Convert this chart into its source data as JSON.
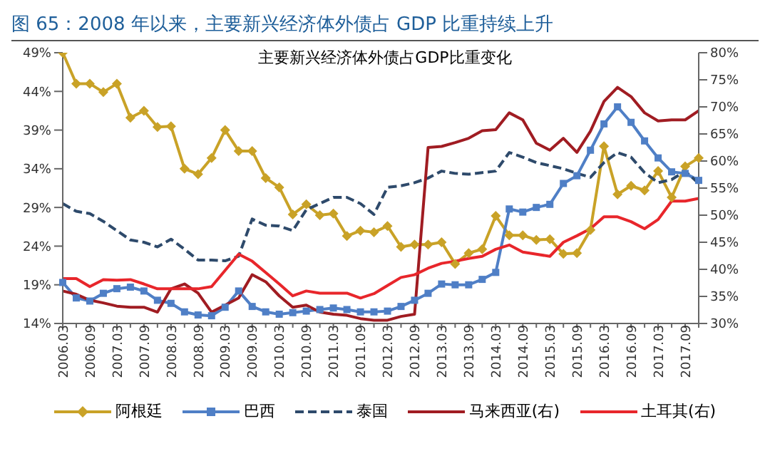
{
  "chart_data": {
    "type": "line",
    "title": "图 65：2008 年以来，主要新兴经济体外债占 GDP 比重持续上升",
    "subtitle": "主要新兴经济体外债占GDP比重变化",
    "categories": [
      "2006.03",
      null,
      "2006.09",
      null,
      "2007.03",
      null,
      "2007.09",
      null,
      "2008.03",
      null,
      "2008.09",
      null,
      "2009.03",
      null,
      "2009.09",
      null,
      "2010.03",
      null,
      "2010.09",
      null,
      "2011.03",
      null,
      "2011.09",
      null,
      "2012.03",
      null,
      "2012.09",
      null,
      "2013.03",
      null,
      "2013.09",
      null,
      "2014.03",
      null,
      "2014.09",
      null,
      "2015.03",
      null,
      "2015.09",
      null,
      "2016.03",
      null,
      "2016.09",
      null,
      "2017.03",
      null,
      "2017.09",
      null
    ],
    "series": [
      {
        "name": "阿根廷",
        "color": "#c9a227",
        "marker": "diamond",
        "values": [
          49,
          45,
          45,
          43.9,
          45,
          40.6,
          41.5,
          39.4,
          39.5,
          34,
          33.3,
          35.4,
          39,
          36.3,
          36.3,
          32.8,
          31.6,
          28.1,
          29.4,
          28,
          28.2,
          25.3,
          26,
          25.8,
          26.6,
          23.9,
          24.2,
          24.2,
          24.5,
          21.7,
          23.1,
          23.6,
          27.9,
          25.4,
          25.4,
          24.8,
          24.9,
          23,
          23.1,
          26.1,
          36.9,
          30.7,
          31.8,
          31.2,
          33.7,
          30.3,
          34.3,
          35.4
        ]
      },
      {
        "name": "巴西",
        "color": "#4f7fc6",
        "marker": "square",
        "values": [
          19.3,
          17.3,
          16.9,
          17.9,
          18.5,
          18.7,
          18.2,
          17,
          16.6,
          15.5,
          15.1,
          15,
          16.1,
          18.2,
          16.2,
          15.5,
          15.2,
          15.4,
          15.6,
          15.8,
          16,
          15.8,
          15.5,
          15.5,
          15.6,
          16.2,
          17,
          17.9,
          19.1,
          19,
          19,
          19.7,
          20.6,
          28.8,
          28.4,
          29,
          29.4,
          32.1,
          33.1,
          36.4,
          39.8,
          42,
          40,
          37.6,
          35.4,
          33.6,
          33.4,
          32.5
        ]
      },
      {
        "name": "泰国",
        "color": "#2e4a6b",
        "line_style": "dashed",
        "values": [
          29.5,
          28.5,
          28.2,
          27.2,
          26,
          24.8,
          24.5,
          23.9,
          24.9,
          23.6,
          22.2,
          22.2,
          22.1,
          22.7,
          27.5,
          26.7,
          26.6,
          26,
          28.7,
          29.5,
          30.3,
          30.3,
          29.5,
          28.1,
          31.6,
          31.8,
          32.2,
          32.8,
          33.7,
          33.4,
          33.3,
          33.5,
          33.7,
          36.1,
          35.5,
          34.8,
          34.4,
          34,
          33.4,
          32.9,
          34.8,
          36.1,
          35.5,
          33.5,
          32.2,
          32.6,
          33.7,
          32.1
        ]
      },
      {
        "name": "马来西亚(右)",
        "color": "#a01c22",
        "axis": "y2",
        "values": [
          36,
          35.4,
          34.3,
          33.8,
          33.2,
          33,
          33,
          32.1,
          36.4,
          37.3,
          35.6,
          32.1,
          33.4,
          34.7,
          39,
          37.7,
          35.1,
          33,
          33.4,
          32.1,
          31.7,
          31.5,
          30.9,
          30.6,
          30.6,
          31.3,
          31.7,
          62.5,
          62.7,
          63.4,
          64.2,
          65.6,
          65.8,
          68.9,
          67.6,
          63.3,
          62,
          64.2,
          61.6,
          65.5,
          71,
          73.6,
          71.9,
          68.9,
          67.4,
          67.6,
          67.6,
          69.3
        ]
      },
      {
        "name": "土耳其(右)",
        "color": "#e8262b",
        "axis": "y2",
        "values": [
          38.3,
          38.3,
          36.8,
          38.1,
          38,
          38.1,
          37.3,
          36.4,
          36.4,
          36.4,
          36.4,
          36.8,
          39.8,
          42.8,
          41.5,
          39.4,
          37.3,
          35.1,
          36,
          35.6,
          35.6,
          35.6,
          34.7,
          35.5,
          37,
          38.5,
          39,
          40.2,
          41.1,
          41.5,
          42,
          42.4,
          43.7,
          44.5,
          43.2,
          42.8,
          42.4,
          45,
          46.2,
          47.5,
          49.7,
          49.7,
          48.8,
          47.5,
          49.2,
          52.6,
          52.6,
          53.1
        ]
      }
    ],
    "ylim": [
      14,
      49
    ],
    "yticks": [
      {
        "value": 14,
        "label": "14%"
      },
      {
        "value": 19,
        "label": "19%"
      },
      {
        "value": 24,
        "label": "24%"
      },
      {
        "value": 29,
        "label": "29%"
      },
      {
        "value": 34,
        "label": "34%"
      },
      {
        "value": 39,
        "label": "39%"
      },
      {
        "value": 44,
        "label": "44%"
      },
      {
        "value": 49,
        "label": "49%"
      }
    ],
    "y2lim": [
      30,
      80
    ],
    "y2ticks": [
      {
        "value": 30,
        "label": "30%"
      },
      {
        "value": 35,
        "label": "35%"
      },
      {
        "value": 40,
        "label": "40%"
      },
      {
        "value": 45,
        "label": "45%"
      },
      {
        "value": 50,
        "label": "50%"
      },
      {
        "value": 55,
        "label": "55%"
      },
      {
        "value": 60,
        "label": "60%"
      },
      {
        "value": 65,
        "label": "65%"
      },
      {
        "value": 70,
        "label": "70%"
      },
      {
        "value": 75,
        "label": "75%"
      },
      {
        "value": 80,
        "label": "80%"
      }
    ],
    "grid": false,
    "legend": "bottom"
  }
}
